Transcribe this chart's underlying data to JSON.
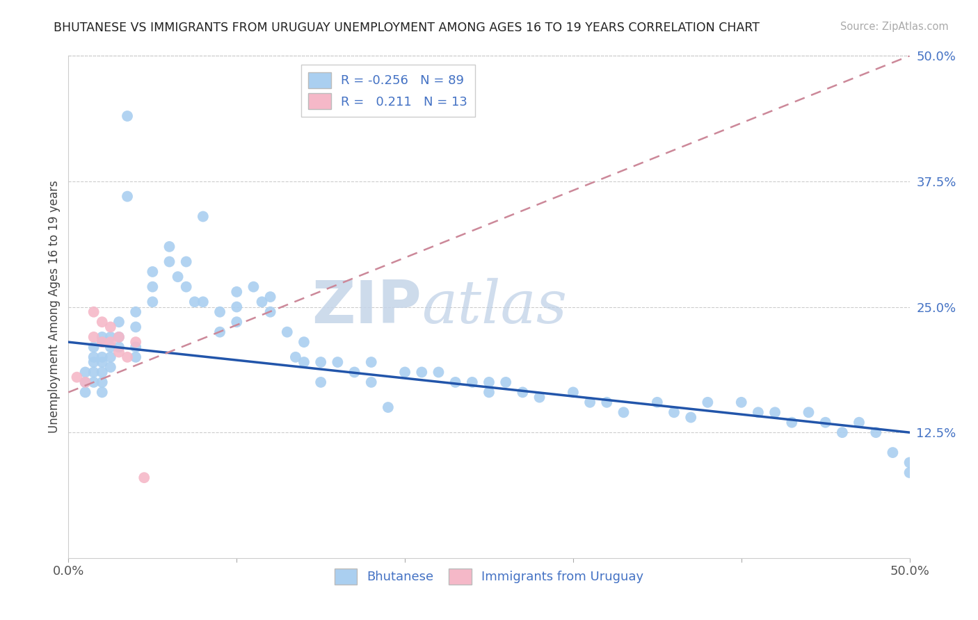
{
  "title": "BHUTANESE VS IMMIGRANTS FROM URUGUAY UNEMPLOYMENT AMONG AGES 16 TO 19 YEARS CORRELATION CHART",
  "source": "Source: ZipAtlas.com",
  "ylabel": "Unemployment Among Ages 16 to 19 years",
  "x_min": 0.0,
  "x_max": 0.5,
  "y_min": 0.0,
  "y_max": 0.5,
  "y_ticks_right": [
    0.125,
    0.25,
    0.375,
    0.5
  ],
  "y_tick_labels_right": [
    "12.5%",
    "25.0%",
    "37.5%",
    "50.0%"
  ],
  "R_bhutanese": -0.256,
  "N_bhutanese": 89,
  "R_uruguay": 0.211,
  "N_uruguay": 13,
  "bhutanese_color": "#aacff0",
  "bhutanese_line_color": "#2255aa",
  "uruguay_color": "#f5b8c8",
  "uruguay_line_color": "#cc8899",
  "watermark_zip": "ZIP",
  "watermark_atlas": "atlas",
  "bhutanese_x": [
    0.01,
    0.01,
    0.01,
    0.015,
    0.015,
    0.015,
    0.015,
    0.015,
    0.02,
    0.02,
    0.02,
    0.02,
    0.02,
    0.02,
    0.02,
    0.025,
    0.025,
    0.025,
    0.025,
    0.03,
    0.03,
    0.03,
    0.035,
    0.035,
    0.04,
    0.04,
    0.04,
    0.04,
    0.05,
    0.05,
    0.05,
    0.06,
    0.06,
    0.065,
    0.07,
    0.07,
    0.075,
    0.08,
    0.08,
    0.09,
    0.09,
    0.1,
    0.1,
    0.1,
    0.11,
    0.115,
    0.12,
    0.12,
    0.13,
    0.135,
    0.14,
    0.14,
    0.15,
    0.15,
    0.16,
    0.17,
    0.18,
    0.18,
    0.19,
    0.2,
    0.21,
    0.22,
    0.23,
    0.24,
    0.25,
    0.25,
    0.26,
    0.27,
    0.28,
    0.3,
    0.31,
    0.32,
    0.33,
    0.35,
    0.36,
    0.37,
    0.38,
    0.4,
    0.41,
    0.42,
    0.43,
    0.44,
    0.45,
    0.46,
    0.47,
    0.48,
    0.49,
    0.5,
    0.5
  ],
  "bhutanese_y": [
    0.185,
    0.175,
    0.165,
    0.21,
    0.2,
    0.195,
    0.185,
    0.175,
    0.22,
    0.215,
    0.2,
    0.195,
    0.185,
    0.175,
    0.165,
    0.22,
    0.21,
    0.2,
    0.19,
    0.235,
    0.22,
    0.21,
    0.44,
    0.36,
    0.245,
    0.23,
    0.21,
    0.2,
    0.285,
    0.27,
    0.255,
    0.31,
    0.295,
    0.28,
    0.295,
    0.27,
    0.255,
    0.34,
    0.255,
    0.245,
    0.225,
    0.265,
    0.25,
    0.235,
    0.27,
    0.255,
    0.26,
    0.245,
    0.225,
    0.2,
    0.215,
    0.195,
    0.195,
    0.175,
    0.195,
    0.185,
    0.195,
    0.175,
    0.15,
    0.185,
    0.185,
    0.185,
    0.175,
    0.175,
    0.175,
    0.165,
    0.175,
    0.165,
    0.16,
    0.165,
    0.155,
    0.155,
    0.145,
    0.155,
    0.145,
    0.14,
    0.155,
    0.155,
    0.145,
    0.145,
    0.135,
    0.145,
    0.135,
    0.125,
    0.135,
    0.125,
    0.105,
    0.085,
    0.095
  ],
  "uruguay_x": [
    0.005,
    0.01,
    0.015,
    0.015,
    0.02,
    0.02,
    0.025,
    0.025,
    0.03,
    0.03,
    0.035,
    0.04,
    0.045
  ],
  "uruguay_y": [
    0.18,
    0.175,
    0.245,
    0.22,
    0.235,
    0.215,
    0.23,
    0.215,
    0.22,
    0.205,
    0.2,
    0.215,
    0.08
  ],
  "bhutanese_line_x0": 0.0,
  "bhutanese_line_y0": 0.215,
  "bhutanese_line_x1": 0.5,
  "bhutanese_line_y1": 0.125,
  "uruguay_line_x0": 0.0,
  "uruguay_line_y0": 0.165,
  "uruguay_line_x1": 0.5,
  "uruguay_line_y1": 0.5
}
